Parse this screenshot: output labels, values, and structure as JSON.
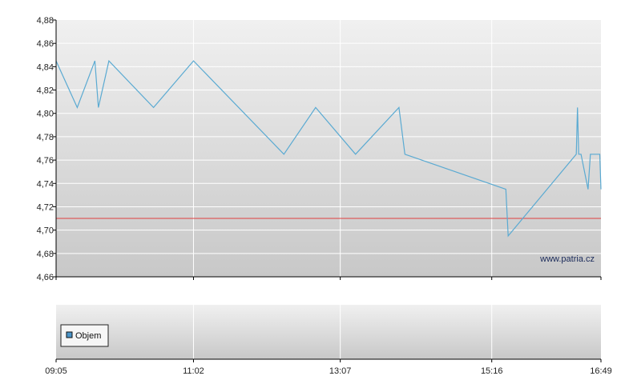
{
  "chart_data": [
    {
      "type": "line",
      "x_ticks": [
        "09:05",
        "11:02",
        "13:07",
        "15:16",
        "16:49"
      ],
      "y_ticks": [
        "4,88",
        "4,86",
        "4,84",
        "4,82",
        "4,80",
        "4,78",
        "4,76",
        "4,74",
        "4,72",
        "4,70",
        "4,68",
        "4,66"
      ],
      "ylim": [
        4.66,
        4.88
      ],
      "grid": true,
      "watermark": "www.patria.cz",
      "reference_line": {
        "value": 4.71,
        "color": "#e04040"
      },
      "series": [
        {
          "color": "#5aaad2",
          "points": [
            [
              "09:05",
              4.845
            ],
            [
              "09:23",
              4.805
            ],
            [
              "09:38",
              4.845
            ],
            [
              "09:41",
              4.805
            ],
            [
              "09:50",
              4.845
            ],
            [
              "10:28",
              4.805
            ],
            [
              "11:02",
              4.845
            ],
            [
              "12:19",
              4.765
            ],
            [
              "12:46",
              4.805
            ],
            [
              "13:20",
              4.765
            ],
            [
              "13:57",
              4.805
            ],
            [
              "14:02",
              4.765
            ],
            [
              "15:28",
              4.735
            ],
            [
              "15:30",
              4.695
            ],
            [
              "16:28",
              4.765
            ],
            [
              "16:29",
              4.805
            ],
            [
              "16:30",
              4.765
            ],
            [
              "16:32",
              4.765
            ],
            [
              "16:38",
              4.735
            ],
            [
              "16:40",
              4.765
            ],
            [
              "16:48",
              4.765
            ],
            [
              "16:49",
              4.735
            ]
          ]
        }
      ]
    },
    {
      "type": "bar",
      "legend": [
        {
          "label": "Objem",
          "color": "#4a94c8"
        }
      ],
      "legend_position": "bottom-left"
    }
  ]
}
